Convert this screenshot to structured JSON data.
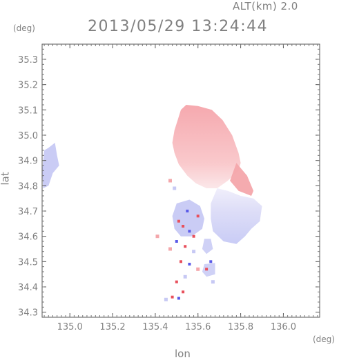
{
  "header": {
    "altitude_label": "ALT(km) 2.0",
    "timestamp": "2013/05/29 13:24:44"
  },
  "units": {
    "y": "(deg)",
    "x": "(deg)"
  },
  "axes": {
    "ylabel": "lat",
    "xlabel": "lon"
  },
  "chart_data": {
    "type": "heatmap",
    "title": "2013/05/29 13:24:44",
    "xlabel": "lon",
    "ylabel": "lat",
    "xlim": [
      134.87,
      136.17
    ],
    "ylim": [
      34.28,
      35.36
    ],
    "x_ticks": [
      "135.0",
      "135.2",
      "135.4",
      "135.6",
      "135.8",
      "136.0"
    ],
    "y_ticks": [
      "34.3",
      "34.4",
      "34.5",
      "34.6",
      "34.7",
      "34.8",
      "34.9",
      "35.0",
      "35.1",
      "35.2",
      "35.3"
    ],
    "x_tick_values": [
      135.0,
      135.2,
      135.4,
      135.6,
      135.8,
      136.0
    ],
    "y_tick_values": [
      34.3,
      34.4,
      34.5,
      34.6,
      34.7,
      34.8,
      34.9,
      35.0,
      35.1,
      35.2,
      35.3
    ],
    "grid": false,
    "colors": {
      "positive": "#f4a7ab",
      "negative": "#c7c9f4",
      "strong_positive": "#e8505c",
      "strong_negative": "#5a5ae8"
    },
    "regions": [
      {
        "name": "north-main",
        "sign": "positive",
        "polygon": [
          [
            135.545,
            35.12
          ],
          [
            135.6,
            35.115
          ],
          [
            135.665,
            35.1
          ],
          [
            135.715,
            35.06
          ],
          [
            135.76,
            35.0
          ],
          [
            135.79,
            34.93
          ],
          [
            135.8,
            34.89
          ],
          [
            135.79,
            34.86
          ],
          [
            135.74,
            34.82
          ],
          [
            135.69,
            34.79
          ],
          [
            135.64,
            34.79
          ],
          [
            135.59,
            34.81
          ],
          [
            135.55,
            34.84
          ],
          [
            135.51,
            34.885
          ],
          [
            135.49,
            34.93
          ],
          [
            135.48,
            34.97
          ],
          [
            135.49,
            35.02
          ],
          [
            135.505,
            35.06
          ],
          [
            135.52,
            35.1
          ]
        ]
      },
      {
        "name": "east-lobe",
        "sign": "positive",
        "polygon": [
          [
            135.78,
            34.89
          ],
          [
            135.83,
            34.84
          ],
          [
            135.86,
            34.78
          ],
          [
            135.85,
            34.76
          ],
          [
            135.79,
            34.78
          ],
          [
            135.75,
            34.82
          ]
        ]
      },
      {
        "name": "southeast-lobe",
        "sign": "negative",
        "polygon": [
          [
            135.69,
            34.79
          ],
          [
            135.74,
            34.78
          ],
          [
            135.8,
            34.76
          ],
          [
            135.86,
            34.75
          ],
          [
            135.9,
            34.72
          ],
          [
            135.89,
            34.66
          ],
          [
            135.85,
            34.63
          ],
          [
            135.82,
            34.6
          ],
          [
            135.78,
            34.57
          ],
          [
            135.72,
            34.58
          ],
          [
            135.67,
            34.62
          ],
          [
            135.66,
            34.67
          ],
          [
            135.66,
            34.73
          ]
        ]
      },
      {
        "name": "southwest-blob",
        "sign": "negative",
        "polygon": [
          [
            135.5,
            34.73
          ],
          [
            135.56,
            34.745
          ],
          [
            135.61,
            34.72
          ],
          [
            135.63,
            34.67
          ],
          [
            135.62,
            34.63
          ],
          [
            135.57,
            34.6
          ],
          [
            135.52,
            34.6
          ],
          [
            135.49,
            34.63
          ],
          [
            135.48,
            34.68
          ]
        ]
      },
      {
        "name": "west-edge",
        "sign": "negative",
        "polygon": [
          [
            134.88,
            34.94
          ],
          [
            134.9,
            34.95
          ],
          [
            134.93,
            34.97
          ],
          [
            134.94,
            34.92
          ],
          [
            134.95,
            34.88
          ],
          [
            134.92,
            34.85
          ],
          [
            134.9,
            34.8
          ],
          [
            134.875,
            34.79
          ],
          [
            134.87,
            34.86
          ]
        ]
      },
      {
        "name": "south-fragment-1",
        "sign": "negative",
        "polygon": [
          [
            135.63,
            34.59
          ],
          [
            135.66,
            34.59
          ],
          [
            135.67,
            34.55
          ],
          [
            135.64,
            34.53
          ],
          [
            135.62,
            34.55
          ]
        ]
      },
      {
        "name": "south-fragment-2",
        "sign": "negative",
        "polygon": [
          [
            135.63,
            34.49
          ],
          [
            135.68,
            34.495
          ],
          [
            135.68,
            34.45
          ],
          [
            135.64,
            34.44
          ],
          [
            135.62,
            34.46
          ]
        ]
      }
    ],
    "scatter": [
      {
        "lon": 135.47,
        "lat": 34.82,
        "sign": "positive"
      },
      {
        "lon": 135.49,
        "lat": 34.79,
        "sign": "negative"
      },
      {
        "lon": 135.51,
        "lat": 34.66,
        "sign": "strong_positive"
      },
      {
        "lon": 135.53,
        "lat": 34.64,
        "sign": "strong_positive"
      },
      {
        "lon": 135.56,
        "lat": 34.62,
        "sign": "strong_negative"
      },
      {
        "lon": 135.58,
        "lat": 34.6,
        "sign": "strong_positive"
      },
      {
        "lon": 135.5,
        "lat": 34.58,
        "sign": "strong_negative"
      },
      {
        "lon": 135.54,
        "lat": 34.56,
        "sign": "strong_positive"
      },
      {
        "lon": 135.47,
        "lat": 34.55,
        "sign": "positive"
      },
      {
        "lon": 135.58,
        "lat": 34.54,
        "sign": "negative"
      },
      {
        "lon": 135.52,
        "lat": 34.5,
        "sign": "strong_positive"
      },
      {
        "lon": 135.56,
        "lat": 34.49,
        "sign": "strong_negative"
      },
      {
        "lon": 135.6,
        "lat": 34.47,
        "sign": "positive"
      },
      {
        "lon": 135.66,
        "lat": 34.5,
        "sign": "strong_negative"
      },
      {
        "lon": 135.64,
        "lat": 34.47,
        "sign": "strong_positive"
      },
      {
        "lon": 135.54,
        "lat": 34.44,
        "sign": "negative"
      },
      {
        "lon": 135.5,
        "lat": 34.42,
        "sign": "strong_positive"
      },
      {
        "lon": 135.67,
        "lat": 34.42,
        "sign": "negative"
      },
      {
        "lon": 135.53,
        "lat": 34.38,
        "sign": "strong_positive"
      },
      {
        "lon": 135.48,
        "lat": 34.36,
        "sign": "strong_positive"
      },
      {
        "lon": 135.51,
        "lat": 34.355,
        "sign": "strong_negative"
      },
      {
        "lon": 135.45,
        "lat": 34.35,
        "sign": "negative"
      },
      {
        "lon": 135.41,
        "lat": 34.6,
        "sign": "positive"
      },
      {
        "lon": 135.55,
        "lat": 34.7,
        "sign": "strong_negative"
      },
      {
        "lon": 135.6,
        "lat": 34.68,
        "sign": "strong_positive"
      }
    ]
  }
}
